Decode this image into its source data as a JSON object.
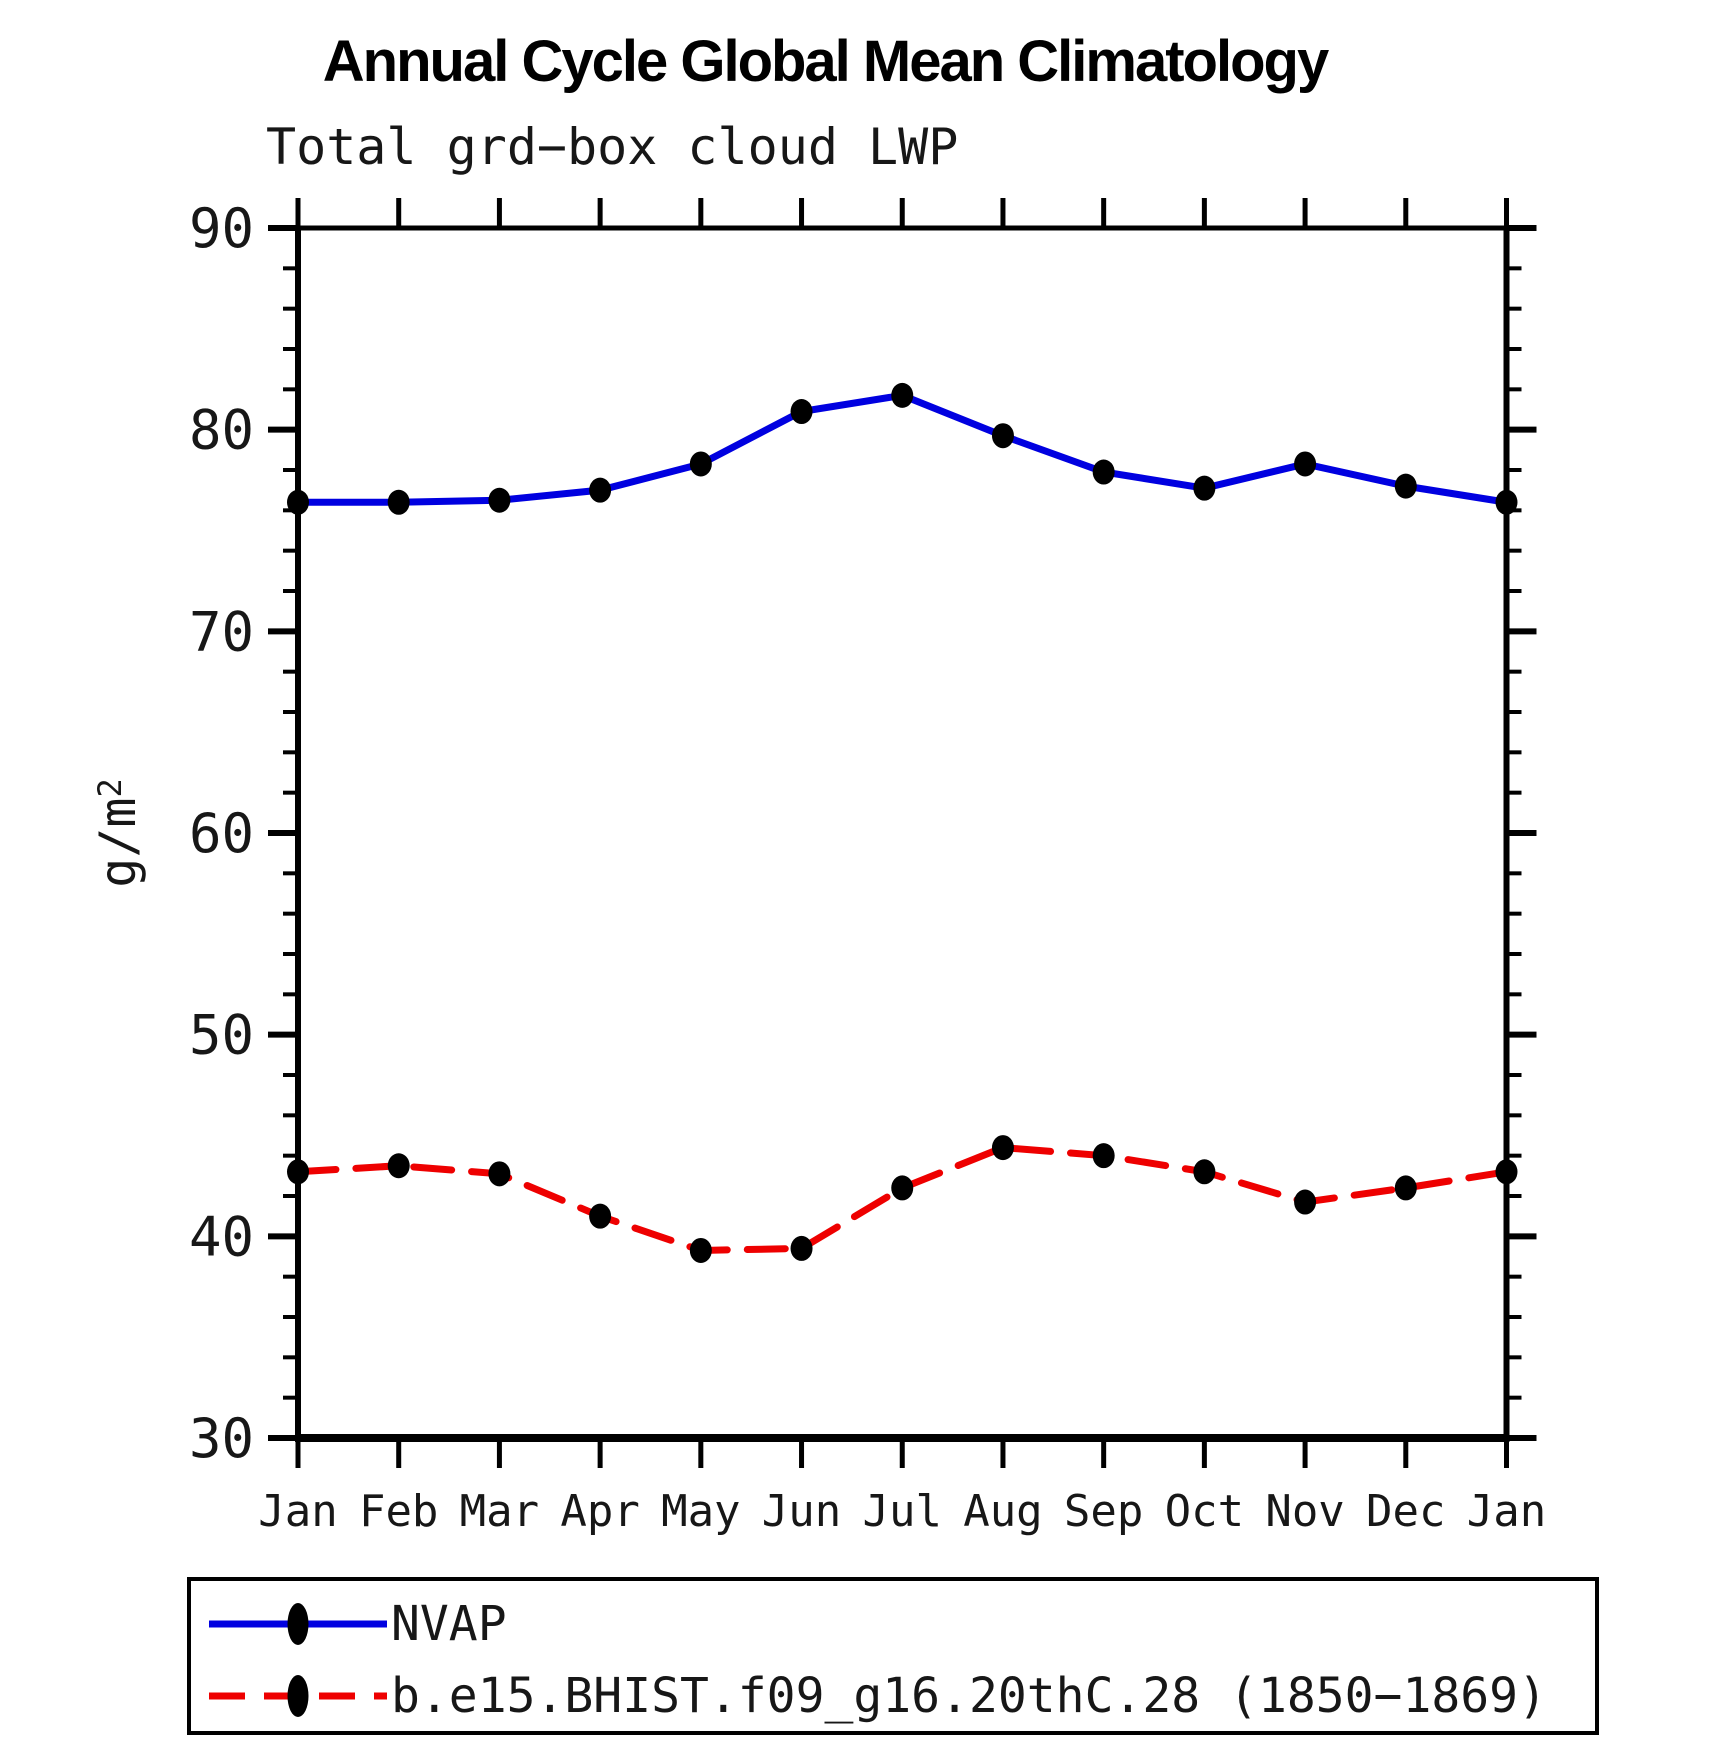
{
  "page": {
    "title": "Annual Cycle Global Mean Climatology",
    "subtitle": "Total grd−box cloud LWP"
  },
  "y_axis": {
    "label_base": "g/m",
    "label_exponent": "2"
  },
  "legend": {
    "items": [
      {
        "label": "NVAP",
        "color": "#0000e0",
        "style": "solid"
      },
      {
        "label": "b.e15.BHIST.f09_g16.20thC.28 (1850−1869)",
        "color": "#ee0000",
        "style": "dashed"
      }
    ]
  },
  "chart_data": {
    "type": "line",
    "title": "Annual Cycle Global Mean Climatology",
    "subtitle": "Total grd-box cloud LWP",
    "ylabel": "g/m^2",
    "categories": [
      "Jan",
      "Feb",
      "Mar",
      "Apr",
      "May",
      "Jun",
      "Jul",
      "Aug",
      "Sep",
      "Oct",
      "Nov",
      "Dec",
      "Jan"
    ],
    "ylim": [
      30,
      90
    ],
    "ytick_major_step": 10,
    "ytick_minor_step": 2,
    "grid": false,
    "legend_position": "bottom",
    "marker": {
      "shape": "filled-ellipse",
      "color": "#000000"
    },
    "series": [
      {
        "name": "NVAP",
        "color": "#0000e0",
        "line_style": "solid",
        "values": [
          76.4,
          76.4,
          76.5,
          77.0,
          78.3,
          80.9,
          81.7,
          79.7,
          77.9,
          77.1,
          78.3,
          77.2,
          76.4
        ]
      },
      {
        "name": "b.e15.BHIST.f09_g16.20thC.28 (1850−1869)",
        "color": "#ee0000",
        "line_style": "dashed",
        "values": [
          43.2,
          43.5,
          43.1,
          41.0,
          39.3,
          39.4,
          42.4,
          44.4,
          44.0,
          43.2,
          41.7,
          42.4,
          43.2
        ]
      }
    ]
  }
}
